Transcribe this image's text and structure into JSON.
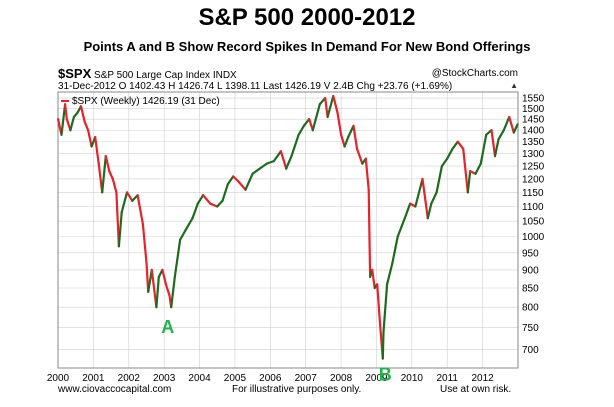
{
  "title": "S&P 500 2000-2012",
  "subtitle": "Points A and B Show Record Spikes In Demand For New Bond Offerings",
  "header": {
    "symbol": "$SPX",
    "description": "S&P 500 Large Cap Index  INDX",
    "copyright": "@StockCharts.com",
    "quote": "31-Dec-2012   O 1402.43   H 1426.74   L 1398.11   Last 1426.19   V 2.4B   Chg +23.76 (+1.69%)",
    "triangle": "▲"
  },
  "legend": "$SPX (Weekly) 1426.19 (31 Dec)",
  "colors": {
    "rising": "#1e6b1e",
    "falling": "#e8212a",
    "grid": "#d0d0d0",
    "annotation": "#22b14c"
  },
  "annotations": [
    {
      "label": "A",
      "x": 2003.1,
      "y": 790
    },
    {
      "label": "B",
      "x": 2009.25,
      "y": 680
    }
  ],
  "footer": {
    "left": "www.ciovaccocapital.com",
    "center": "For illustrative purposes only.",
    "right": "Use at own risk."
  },
  "chart_data": {
    "type": "line",
    "title": "S&P 500 2000-2012",
    "series": [
      {
        "name": "$SPX (Weekly)",
        "x": [
          2000.0,
          2000.1,
          2000.2,
          2000.25,
          2000.35,
          2000.45,
          2000.55,
          2000.65,
          2000.75,
          2000.85,
          2000.95,
          2001.05,
          2001.15,
          2001.25,
          2001.35,
          2001.45,
          2001.55,
          2001.65,
          2001.72,
          2001.8,
          2001.95,
          2002.1,
          2002.25,
          2002.4,
          2002.5,
          2002.55,
          2002.65,
          2002.78,
          2002.85,
          2002.95,
          2003.05,
          2003.15,
          2003.2,
          2003.3,
          2003.45,
          2003.6,
          2003.8,
          2003.95,
          2004.1,
          2004.3,
          2004.5,
          2004.65,
          2004.8,
          2004.95,
          2005.1,
          2005.3,
          2005.5,
          2005.7,
          2005.9,
          2006.1,
          2006.3,
          2006.45,
          2006.6,
          2006.8,
          2006.95,
          2007.1,
          2007.2,
          2007.4,
          2007.55,
          2007.62,
          2007.78,
          2007.9,
          2008.0,
          2008.1,
          2008.2,
          2008.35,
          2008.45,
          2008.6,
          2008.7,
          2008.78,
          2008.82,
          2008.88,
          2008.95,
          2009.02,
          2009.1,
          2009.18,
          2009.2,
          2009.3,
          2009.45,
          2009.6,
          2009.8,
          2009.95,
          2010.1,
          2010.3,
          2010.45,
          2010.55,
          2010.7,
          2010.85,
          2011.0,
          2011.15,
          2011.3,
          2011.45,
          2011.58,
          2011.65,
          2011.8,
          2011.95,
          2012.1,
          2012.25,
          2012.35,
          2012.45,
          2012.6,
          2012.75,
          2012.88,
          2012.99
        ],
        "values": [
          1450,
          1380,
          1520,
          1450,
          1400,
          1460,
          1480,
          1510,
          1440,
          1400,
          1330,
          1370,
          1260,
          1150,
          1290,
          1230,
          1200,
          1150,
          970,
          1080,
          1150,
          1120,
          1140,
          1040,
          920,
          840,
          900,
          800,
          880,
          900,
          860,
          830,
          800,
          880,
          990,
          1020,
          1060,
          1110,
          1140,
          1110,
          1100,
          1120,
          1180,
          1210,
          1190,
          1160,
          1220,
          1240,
          1260,
          1270,
          1310,
          1240,
          1290,
          1380,
          1420,
          1450,
          1400,
          1520,
          1550,
          1460,
          1560,
          1480,
          1380,
          1330,
          1370,
          1420,
          1320,
          1260,
          1280,
          1160,
          880,
          900,
          850,
          860,
          760,
          680,
          740,
          860,
          920,
          1000,
          1060,
          1110,
          1100,
          1200,
          1060,
          1110,
          1150,
          1250,
          1280,
          1320,
          1350,
          1320,
          1150,
          1230,
          1220,
          1260,
          1380,
          1400,
          1290,
          1360,
          1400,
          1460,
          1390,
          1426
        ]
      }
    ],
    "x_tick_labels": [
      "2000",
      "2001",
      "2002",
      "2003",
      "2004",
      "2005",
      "2006",
      "2007",
      "2008",
      "2009",
      "2010",
      "2011",
      "2012"
    ],
    "y_tick_labels": [
      "700",
      "750",
      "800",
      "850",
      "900",
      "950",
      "1000",
      "1050",
      "1100",
      "1150",
      "1200",
      "1250",
      "1300",
      "1350",
      "1400",
      "1450",
      "1500",
      "1550"
    ],
    "xlim": [
      2000.0,
      2013.0
    ],
    "ylim": [
      660,
      1580
    ],
    "y_scale": "log",
    "grid": true,
    "legend": "top-left"
  }
}
